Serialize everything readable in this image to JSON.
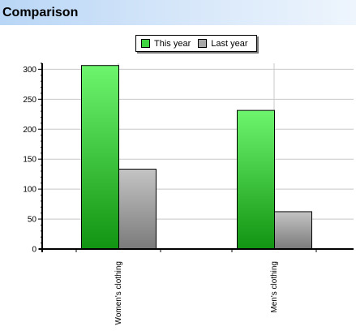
{
  "header": {
    "title": "Comparison"
  },
  "colors": {
    "this_year_top": "#6ef56e",
    "this_year_bottom": "#119411",
    "last_year_top": "#c4c4c4",
    "last_year_bottom": "#7a7a7a",
    "grid": "#c8c8c8"
  },
  "chart_data": {
    "type": "bar",
    "title": "",
    "xlabel": "",
    "ylabel": "",
    "categories": [
      "Women's clothing",
      "Men's clothing"
    ],
    "series": [
      {
        "name": "This year",
        "values": [
          307,
          232
        ]
      },
      {
        "name": "Last year",
        "values": [
          134,
          63
        ]
      }
    ],
    "ylim": [
      0,
      310
    ],
    "yticks": [
      0,
      50,
      100,
      150,
      200,
      250,
      300
    ],
    "ytick_labels": [
      "0",
      "50",
      "100",
      "150",
      "200",
      "250",
      "300"
    ],
    "grid": true,
    "legend_position": "top-center"
  }
}
